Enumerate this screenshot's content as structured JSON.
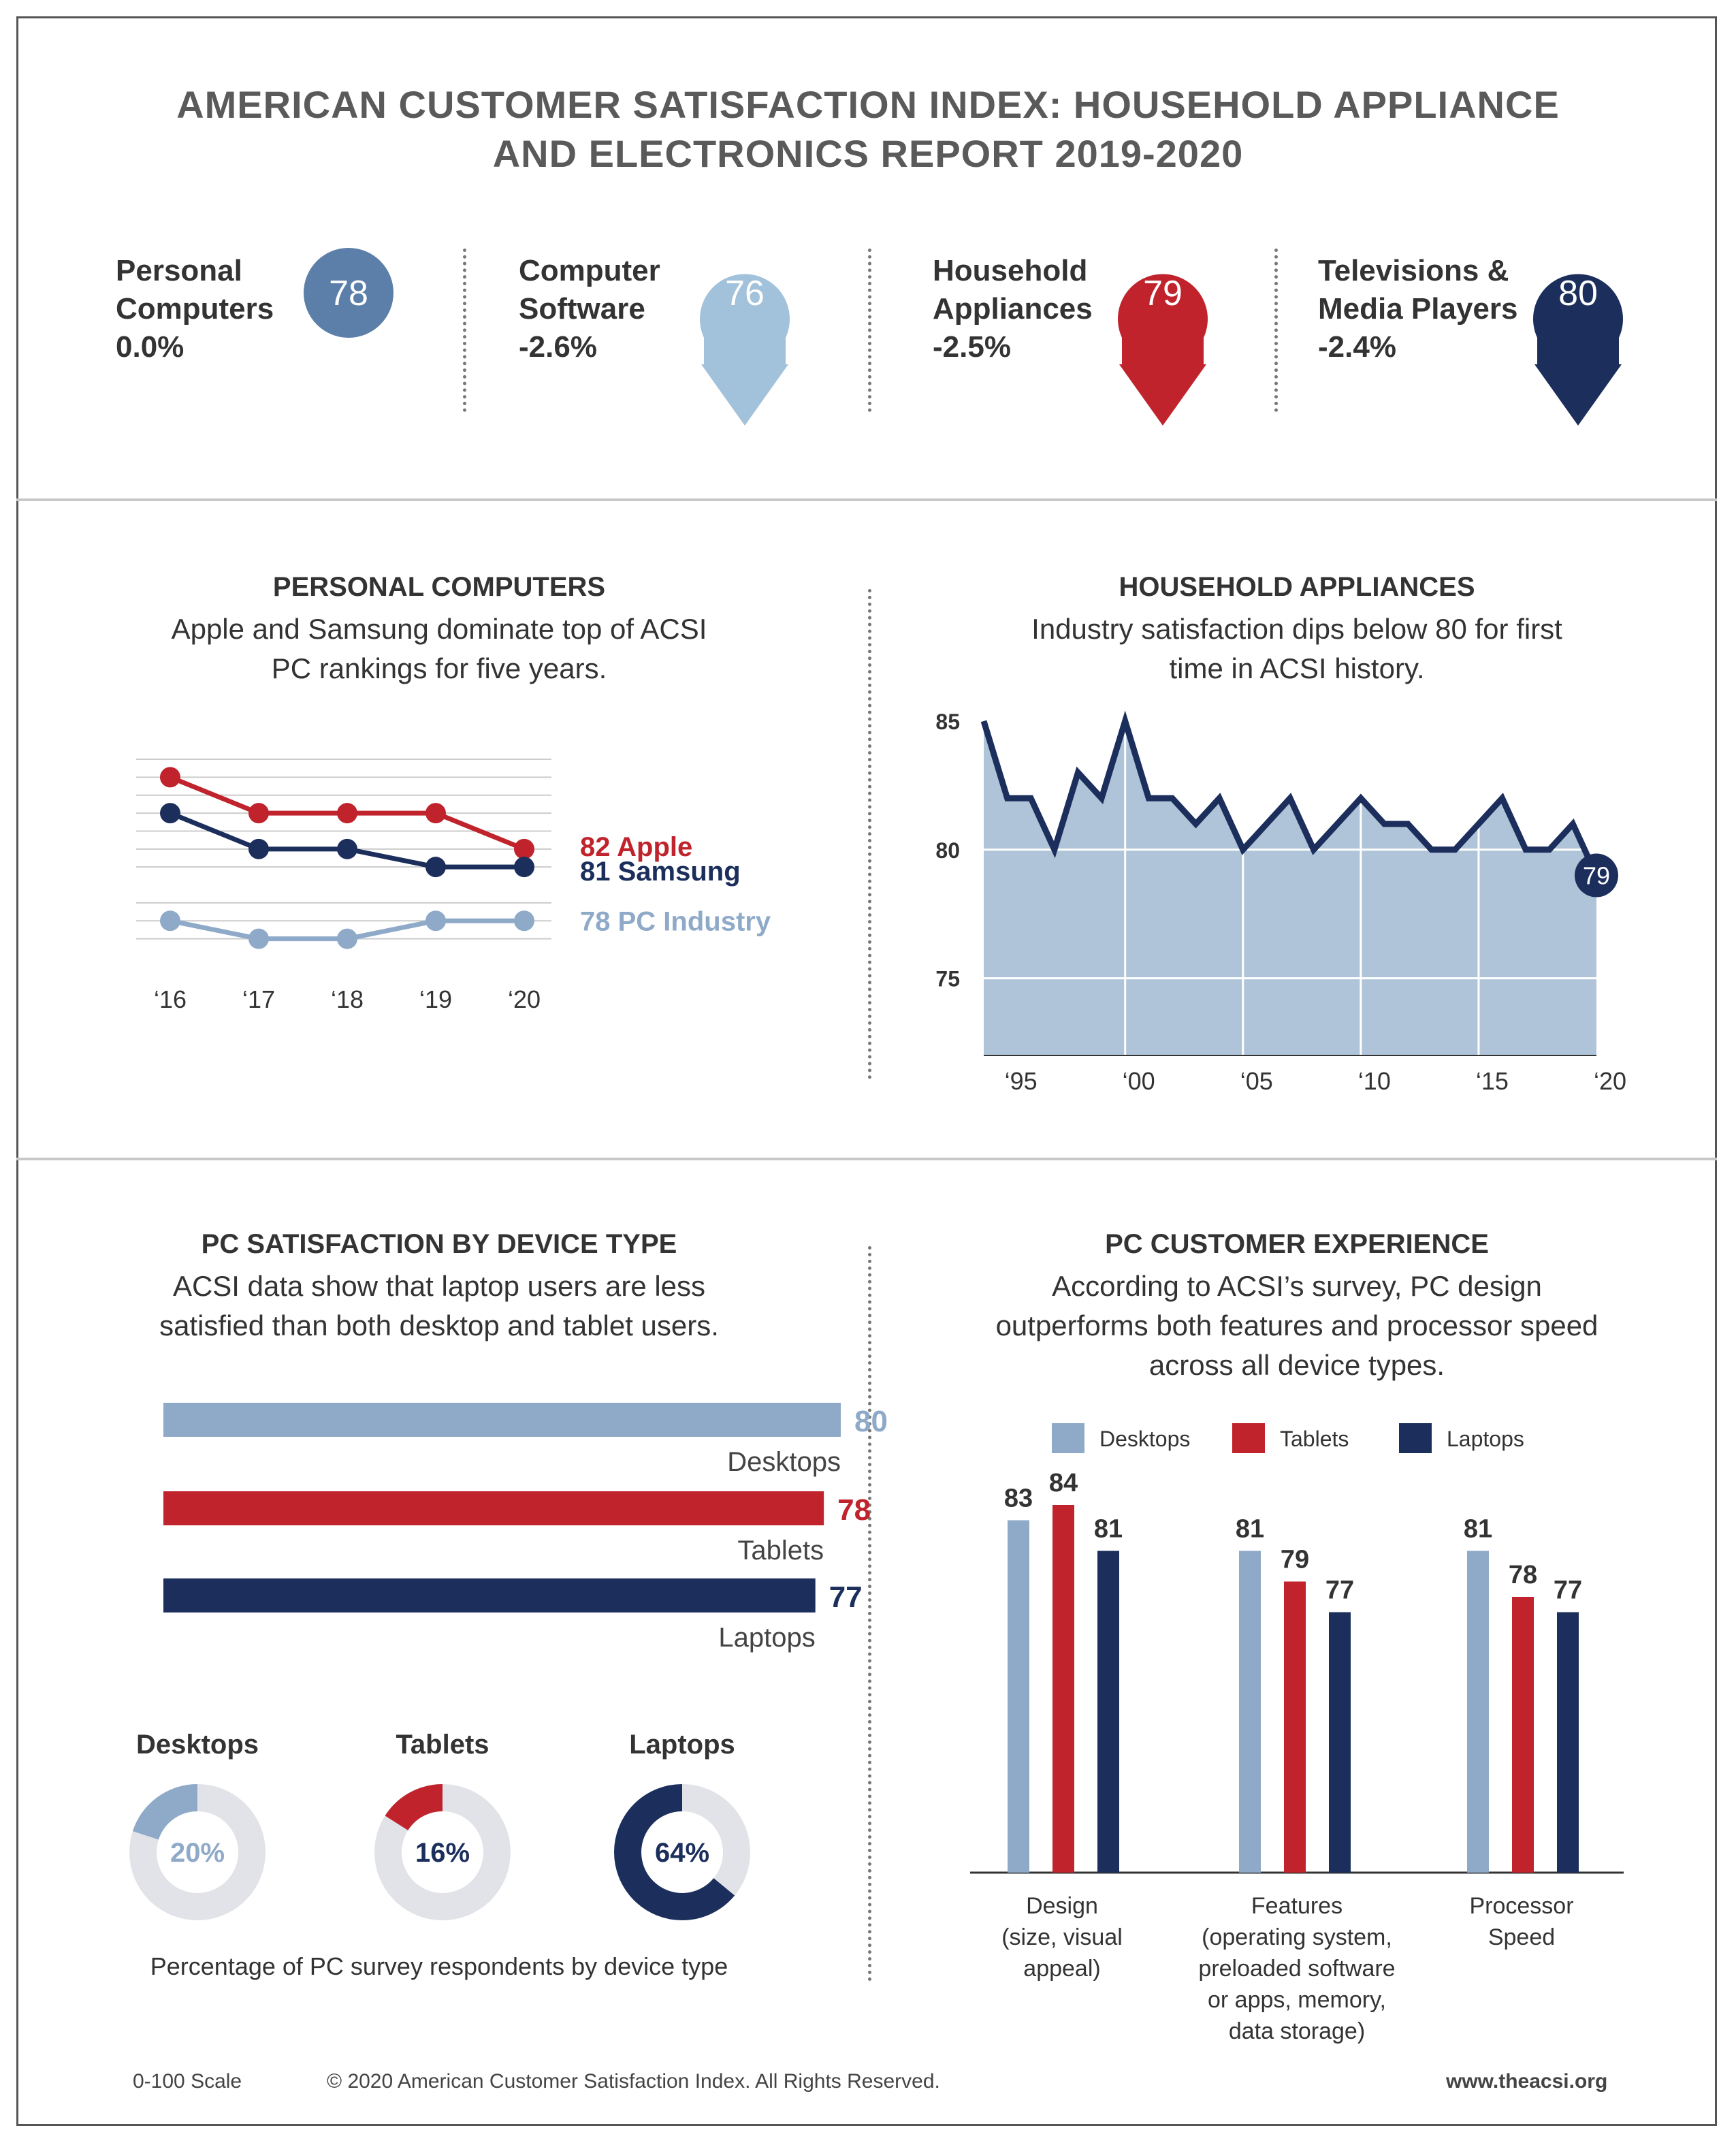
{
  "header": {
    "title_line1": "AMERICAN CUSTOMER SATISFACTION INDEX: HOUSEHOLD APPLIANCE",
    "title_line2": "AND ELECTRONICS REPORT 2019-2020"
  },
  "kpis": [
    {
      "name_line1": "Personal",
      "name_line2": "Computers",
      "change": "0.0%",
      "score": "78",
      "color": "#5b7fa8",
      "arrow": false
    },
    {
      "name_line1": "Computer",
      "name_line2": "Software",
      "change": "-2.6%",
      "score": "76",
      "color": "#a2c1da",
      "arrow": true
    },
    {
      "name_line1": "Household",
      "name_line2": "Appliances",
      "change": "-2.5%",
      "score": "79",
      "color": "#c0232c",
      "arrow": true
    },
    {
      "name_line1": "Televisions &",
      "name_line2": "Media Players",
      "change": "-2.4%",
      "score": "80",
      "color": "#1c2f5c",
      "arrow": true
    }
  ],
  "pc_section": {
    "title": "PERSONAL COMPUTERS",
    "sub_line1": "Apple and Samsung dominate top of ACSI",
    "sub_line2": "PC rankings for five years."
  },
  "appliance_section": {
    "title": "HOUSEHOLD APPLIANCES",
    "sub_line1": "Industry satisfaction dips below 80 for first",
    "sub_line2": "time in ACSI history.",
    "end_label": "79"
  },
  "device_section": {
    "title": "PC SATISFACTION BY DEVICE TYPE",
    "sub_line1": "ACSI data show that laptop users are less",
    "sub_line2": "satisfied than both desktop and tablet users."
  },
  "experience_section": {
    "title": "PC CUSTOMER EXPERIENCE",
    "sub_line1": "According to ACSI’s survey, PC design",
    "sub_line2": "outperforms both features and processor speed",
    "sub_line3": "across all device types."
  },
  "donuts": {
    "caption": "Percentage of PC survey respondents by device type",
    "items": [
      {
        "name": "Desktops",
        "pct": 20,
        "label": "20%",
        "color": "#8faac8"
      },
      {
        "name": "Tablets",
        "pct": 16,
        "label": "16%",
        "color": "#c0232c"
      },
      {
        "name": "Laptops",
        "pct": 64,
        "label": "64%",
        "color": "#1c2f5c"
      }
    ]
  },
  "footer": {
    "scale": "0-100 Scale",
    "copyright": "© 2020 American Customer Satisfaction Index. All Rights Reserved.",
    "url": "www.theacsi.org"
  },
  "colors": {
    "apple": "#c0232c",
    "samsung": "#1c2f5c",
    "industry": "#8faac8",
    "grid": "#cccccc",
    "area": "#b0c4d9"
  },
  "chart_data": [
    {
      "type": "line",
      "x": [
        "‘16",
        "‘17",
        "‘18",
        "‘19",
        "‘20"
      ],
      "series": [
        {
          "name": "Apple",
          "label": "82 Apple",
          "values": [
            86,
            84,
            84,
            84,
            82
          ],
          "color": "#c0232c"
        },
        {
          "name": "Samsung",
          "label": "81 Samsung",
          "values": [
            84,
            82,
            82,
            81,
            81
          ],
          "color": "#1c2f5c"
        },
        {
          "name": "PC Industry",
          "label": "78 PC Industry",
          "values": [
            78,
            77,
            77,
            78,
            78
          ],
          "color": "#8faac8"
        }
      ],
      "ylim": [
        76,
        87
      ]
    },
    {
      "type": "area",
      "x": [
        1994,
        1995,
        1996,
        1997,
        1998,
        1999,
        2000,
        2001,
        2002,
        2003,
        2004,
        2005,
        2006,
        2007,
        2008,
        2009,
        2010,
        2011,
        2012,
        2013,
        2014,
        2015,
        2016,
        2017,
        2018,
        2019,
        2020
      ],
      "values": [
        85,
        82,
        82,
        80,
        83,
        82,
        85,
        82,
        82,
        81,
        82,
        80,
        81,
        82,
        80,
        81,
        82,
        81,
        81,
        80,
        80,
        81,
        82,
        80,
        80,
        81,
        79
      ],
      "xticks": [
        "‘95",
        "‘00",
        "‘05",
        "‘10",
        "‘15",
        "‘20"
      ],
      "xtick_years": [
        1995,
        2000,
        2005,
        2010,
        2015,
        2020
      ],
      "yticks": [
        85,
        80,
        75
      ],
      "ylim": [
        72,
        85.5
      ]
    },
    {
      "type": "bar",
      "orientation": "horizontal",
      "categories": [
        "Desktops",
        "Tablets",
        "Laptops"
      ],
      "values": [
        80,
        78,
        77
      ],
      "colors": [
        "#8faac8",
        "#c0232c",
        "#1c2f5c"
      ]
    },
    {
      "type": "bar",
      "categories": [
        "Design (size, visual appeal)",
        "Features (operating system, preloaded software or apps, memory, data storage)",
        "Processor Speed"
      ],
      "category_lines": [
        [
          "Design",
          "(size, visual",
          "appeal)"
        ],
        [
          "Features",
          "(operating system,",
          "preloaded software",
          "or apps, memory,",
          "data storage)"
        ],
        [
          "Processor",
          "Speed"
        ]
      ],
      "series": [
        {
          "name": "Desktops",
          "values": [
            83,
            81,
            81
          ],
          "color": "#8faac8"
        },
        {
          "name": "Tablets",
          "values": [
            84,
            79,
            78
          ],
          "color": "#c0232c"
        },
        {
          "name": "Laptops",
          "values": [
            81,
            77,
            77
          ],
          "color": "#1c2f5c"
        }
      ],
      "ylim": [
        60,
        84
      ]
    }
  ]
}
